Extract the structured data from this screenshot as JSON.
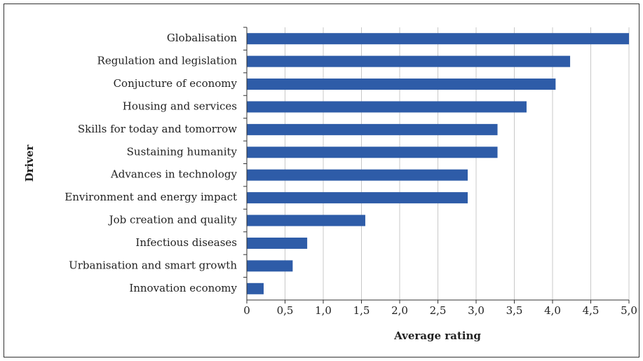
{
  "chart_data": {
    "type": "bar",
    "orientation": "horizontal",
    "x_label": "Average rating",
    "y_label": "Driver",
    "categories": [
      "Globalisation",
      "Regulation and legislation",
      "Conjucture of economy",
      "Housing and services",
      "Skills for today and tomorrow",
      "Sustaining humanity",
      "Advances in technology",
      "Environment and energy impact",
      "Job creation and quality",
      "Infectious diseases",
      "Urbanisation and smart growth",
      "Innovation economy"
    ],
    "values": [
      5.0,
      4.23,
      4.04,
      3.66,
      3.28,
      3.28,
      2.89,
      2.89,
      1.55,
      0.79,
      0.6,
      0.22
    ],
    "color": "#2e5ca8",
    "xlim": [
      0,
      5
    ],
    "xticks": [
      0,
      {
        "value": 0.5,
        "label": "0,5"
      },
      {
        "value": 1,
        "label": "1,0"
      },
      {
        "value": 1.5,
        "label": "1,5"
      },
      {
        "value": 2,
        "label": "2,0"
      },
      {
        "value": 2.5,
        "label": "2,5"
      },
      {
        "value": 3,
        "label": "3,0"
      },
      {
        "value": 3.5,
        "label": "3,5"
      },
      {
        "value": 4,
        "label": "4,0"
      },
      {
        "value": 4.5,
        "label": "4,5"
      },
      {
        "value": 5,
        "label": "5,0"
      }
    ],
    "grid": true
  }
}
